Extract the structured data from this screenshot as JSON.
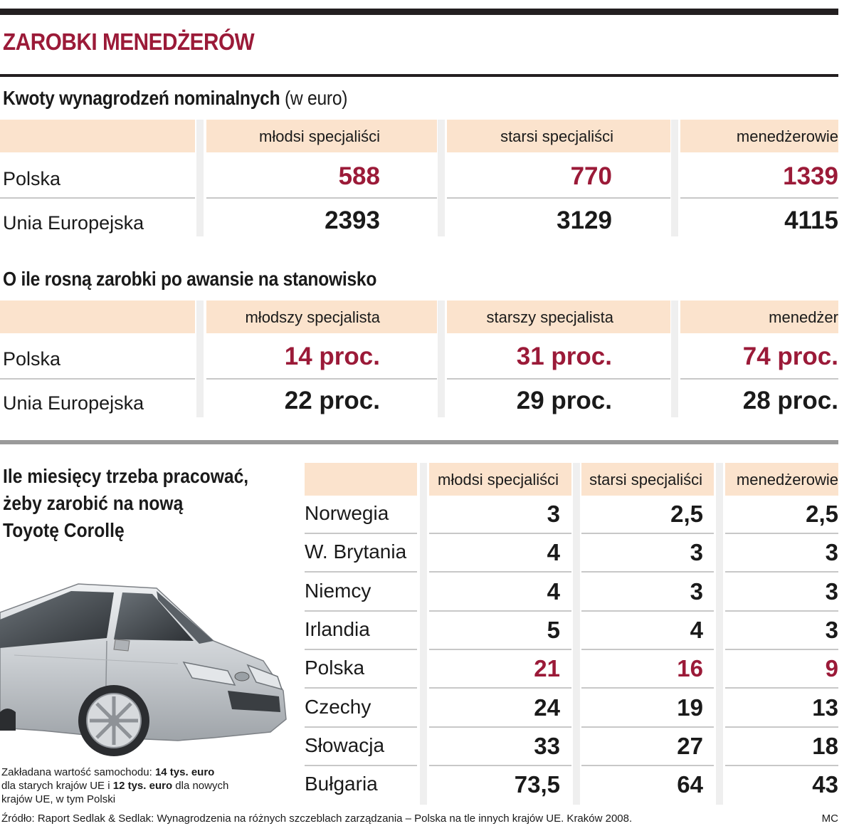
{
  "title": "ZAROBKI MENEDŻERÓW",
  "section1": {
    "title": "Kwoty wynagrodzeń nominalnych",
    "unit": "(w euro)",
    "columns": [
      "młodsi specjaliści",
      "starsi specjaliści",
      "menedżerowie"
    ],
    "rows": [
      {
        "label": "Polska",
        "values": [
          "588",
          "770",
          "1339"
        ]
      },
      {
        "label": "Unia Europejska",
        "values": [
          "2393",
          "3129",
          "4115"
        ]
      }
    ]
  },
  "section2": {
    "title": "O ile rosną zarobki po awansie na stanowisko",
    "columns": [
      "młodszy specjalista",
      "starszy specjalista",
      "menedżer"
    ],
    "rows": [
      {
        "label": "Polska",
        "values": [
          "14 proc.",
          "31 proc.",
          "74 proc."
        ]
      },
      {
        "label": "Unia Europejska",
        "values": [
          "22 proc.",
          "29 proc.",
          "28 proc."
        ]
      }
    ]
  },
  "section3": {
    "title_lines": [
      "Ile miesięcy trzeba pracować,",
      "żeby zarobić na nową",
      "Toyotę Corollę"
    ],
    "columns": [
      "młodsi specjaliści",
      "starsi specjaliści",
      "menedżerowie"
    ],
    "rows": [
      {
        "label": "Norwegia",
        "values": [
          "3",
          "2,5",
          "2,5"
        ]
      },
      {
        "label": "W. Brytania",
        "values": [
          "4",
          "3",
          "3"
        ]
      },
      {
        "label": "Niemcy",
        "values": [
          "4",
          "3",
          "3"
        ]
      },
      {
        "label": "Irlandia",
        "values": [
          "5",
          "4",
          "3"
        ]
      },
      {
        "label": "Polska",
        "values": [
          "21",
          "16",
          "9"
        ]
      },
      {
        "label": "Czechy",
        "values": [
          "24",
          "19",
          "13"
        ]
      },
      {
        "label": "Słowacja",
        "values": [
          "33",
          "27",
          "18"
        ]
      },
      {
        "label": "Bułgaria",
        "values": [
          "73,5",
          "64",
          "43"
        ]
      }
    ],
    "note": {
      "prefix": "Zakładana wartość samochodu:",
      "value1": "14 tys. euro",
      "mid": "dla starych krajów UE i",
      "value2": "12 tys. euro",
      "suffix": "dla nowych",
      "line3": "krajów UE, w tym Polski"
    }
  },
  "source": "Źródło: Raport Sedlak & Sedlak: Wynagrodzenia na różnych szczeblach zarządzania – Polska na tle innych krajów UE. Kraków 2008.",
  "author": "MC",
  "highlight_color": "#9b1a38",
  "header_color": "#fbe3cd"
}
